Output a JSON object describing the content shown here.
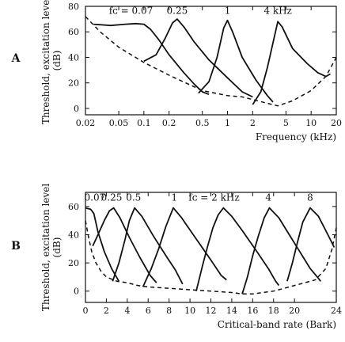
{
  "chart_data": [
    {
      "type": "line",
      "panel_label": "A",
      "ylabel_line1": "Threshold, excitation level",
      "ylabel_line2": "(dB)",
      "xlabel": "Frequency (kHz)",
      "x_scale": "log",
      "xlim": [
        0.02,
        20
      ],
      "ylim": [
        -5,
        80
      ],
      "x_ticks": [
        {
          "value": 0.02,
          "label": "0.02"
        },
        {
          "value": 0.05,
          "label": "0.05"
        },
        {
          "value": 0.1,
          "label": "0.1"
        },
        {
          "value": 0.2,
          "label": "0.2"
        },
        {
          "value": 0.5,
          "label": "0.5"
        },
        {
          "value": 1,
          "label": "1"
        },
        {
          "value": 2,
          "label": "2"
        },
        {
          "value": 5,
          "label": "5"
        },
        {
          "value": 10,
          "label": "10"
        },
        {
          "value": 20,
          "label": "20"
        }
      ],
      "y_ticks": [
        {
          "value": 0,
          "label": "0"
        },
        {
          "value": 20,
          "label": "20"
        },
        {
          "value": 40,
          "label": "40"
        },
        {
          "value": 60,
          "label": "60"
        },
        {
          "value": 80,
          "label": "80"
        }
      ],
      "annotations": [
        {
          "text": "fᴄ = 0.07",
          "x": 0.07,
          "y": 74
        },
        {
          "text": "0.25",
          "x": 0.25,
          "y": 74
        },
        {
          "text": "1",
          "x": 1,
          "y": 74
        },
        {
          "text": "4 kHz",
          "x": 4,
          "y": 74
        }
      ],
      "series": [
        {
          "style": "solid",
          "points": [
            [
              0.025,
              66
            ],
            [
              0.04,
              65
            ],
            [
              0.06,
              66
            ],
            [
              0.08,
              66.5
            ],
            [
              0.1,
              66
            ],
            [
              0.12,
              62
            ],
            [
              0.15,
              54
            ],
            [
              0.2,
              42
            ],
            [
              0.3,
              28
            ],
            [
              0.4,
              19
            ],
            [
              0.5,
              13
            ],
            [
              0.6,
              11
            ]
          ]
        },
        {
          "style": "solid",
          "points": [
            [
              0.1,
              37
            ],
            [
              0.14,
              42
            ],
            [
              0.18,
              55
            ],
            [
              0.22,
              67
            ],
            [
              0.25,
              70
            ],
            [
              0.3,
              64
            ],
            [
              0.4,
              52
            ],
            [
              0.6,
              38
            ],
            [
              1,
              24
            ],
            [
              1.5,
              13
            ],
            [
              2,
              9
            ]
          ]
        },
        {
          "style": "solid",
          "points": [
            [
              0.45,
              12
            ],
            [
              0.6,
              21
            ],
            [
              0.75,
              40
            ],
            [
              0.9,
              63
            ],
            [
              1,
              69
            ],
            [
              1.15,
              60
            ],
            [
              1.5,
              40
            ],
            [
              2.2,
              22
            ],
            [
              3,
              10
            ],
            [
              3.5,
              5
            ]
          ]
        },
        {
          "style": "solid",
          "points": [
            [
              2,
              3
            ],
            [
              2.5,
              13
            ],
            [
              3,
              32
            ],
            [
              3.6,
              55
            ],
            [
              4,
              68
            ],
            [
              4.5,
              64
            ],
            [
              6,
              47
            ],
            [
              9,
              35
            ],
            [
              12,
              28
            ],
            [
              15,
              25
            ],
            [
              17,
              27
            ]
          ]
        },
        {
          "style": "dashed",
          "points": [
            [
              0.02,
              72
            ],
            [
              0.03,
              60
            ],
            [
              0.05,
              48
            ],
            [
              0.1,
              36
            ],
            [
              0.2,
              26
            ],
            [
              0.5,
              14
            ],
            [
              1,
              10
            ],
            [
              1.5,
              9
            ],
            [
              2,
              7
            ],
            [
              3,
              4
            ],
            [
              4,
              2
            ],
            [
              6,
              6
            ],
            [
              10,
              14
            ],
            [
              15,
              25
            ],
            [
              20,
              40
            ]
          ]
        }
      ]
    },
    {
      "type": "line",
      "panel_label": "B",
      "ylabel_line1": "Threshold, excitation level",
      "ylabel_line2": "(dB)",
      "xlabel": "Critical-band rate (Bark)",
      "x_scale": "linear",
      "xlim": [
        0,
        24
      ],
      "ylim": [
        -8,
        70
      ],
      "x_ticks": [
        {
          "value": 0,
          "label": "0"
        },
        {
          "value": 2,
          "label": "2"
        },
        {
          "value": 4,
          "label": "4"
        },
        {
          "value": 6,
          "label": "6"
        },
        {
          "value": 8,
          "label": "8"
        },
        {
          "value": 10,
          "label": "10"
        },
        {
          "value": 12,
          "label": "12"
        },
        {
          "value": 14,
          "label": "14"
        },
        {
          "value": 16,
          "label": "16"
        },
        {
          "value": 18,
          "label": "18"
        },
        {
          "value": 20,
          "label": "20"
        },
        {
          "value": 24,
          "label": "24"
        }
      ],
      "y_ticks": [
        {
          "value": 0,
          "label": "0"
        },
        {
          "value": 20,
          "label": "20"
        },
        {
          "value": 40,
          "label": "40"
        },
        {
          "value": 60,
          "label": "60"
        }
      ],
      "annotations": [
        {
          "text": "0.07",
          "x": 0.9,
          "y": 64
        },
        {
          "text": "0.25",
          "x": 2.5,
          "y": 64
        },
        {
          "text": "0.5",
          "x": 4.6,
          "y": 64
        },
        {
          "text": "1",
          "x": 8.5,
          "y": 64
        },
        {
          "text": "fᴄ = 2 kHz",
          "x": 12.3,
          "y": 64
        },
        {
          "text": "4",
          "x": 17.5,
          "y": 64
        },
        {
          "text": "8",
          "x": 21.5,
          "y": 64
        }
      ],
      "series": [
        {
          "style": "solid",
          "points": [
            [
              0,
              59
            ],
            [
              0.5,
              58
            ],
            [
              0.8,
              55
            ],
            [
              1.2,
              42
            ],
            [
              1.8,
              28
            ],
            [
              2.5,
              16
            ],
            [
              3.2,
              7
            ]
          ]
        },
        {
          "style": "solid",
          "points": [
            [
              0.7,
              32
            ],
            [
              1.2,
              40
            ],
            [
              1.8,
              50
            ],
            [
              2.3,
              57
            ],
            [
              2.7,
              59
            ],
            [
              3.3,
              52
            ],
            [
              4.2,
              38
            ],
            [
              5.2,
              24
            ],
            [
              6.2,
              11
            ],
            [
              6.8,
              6
            ]
          ]
        },
        {
          "style": "solid",
          "points": [
            [
              2.6,
              7
            ],
            [
              3.2,
              20
            ],
            [
              3.8,
              37
            ],
            [
              4.2,
              50
            ],
            [
              4.7,
              59
            ],
            [
              5.4,
              53
            ],
            [
              6.5,
              39
            ],
            [
              7.8,
              24
            ],
            [
              8.6,
              15
            ],
            [
              9.3,
              5
            ]
          ]
        },
        {
          "style": "solid",
          "points": [
            [
              5.5,
              3
            ],
            [
              6.3,
              16
            ],
            [
              7,
              30
            ],
            [
              7.7,
              46
            ],
            [
              8.4,
              59
            ],
            [
              9.2,
              52
            ],
            [
              10.5,
              38
            ],
            [
              12,
              22
            ],
            [
              13,
              11
            ],
            [
              13.5,
              8
            ]
          ]
        },
        {
          "style": "solid",
          "points": [
            [
              10.6,
              0
            ],
            [
              11.2,
              18
            ],
            [
              11.7,
              32
            ],
            [
              12.2,
              45
            ],
            [
              12.7,
              54
            ],
            [
              13.2,
              59
            ],
            [
              14,
              53
            ],
            [
              15,
              43
            ],
            [
              16.5,
              27
            ],
            [
              17.5,
              16
            ],
            [
              18.2,
              7
            ],
            [
              18.5,
              4
            ]
          ]
        },
        {
          "style": "solid",
          "points": [
            [
              15,
              -2
            ],
            [
              15.5,
              10
            ],
            [
              16,
              25
            ],
            [
              16.5,
              38
            ],
            [
              17.1,
              52
            ],
            [
              17.6,
              59
            ],
            [
              18.5,
              52
            ],
            [
              19.5,
              40
            ],
            [
              20.5,
              28
            ],
            [
              21.5,
              16
            ],
            [
              22.3,
              9
            ],
            [
              22.5,
              7
            ]
          ]
        },
        {
          "style": "solid",
          "points": [
            [
              19.3,
              7
            ],
            [
              19.8,
              20
            ],
            [
              20.3,
              35
            ],
            [
              20.8,
              49
            ],
            [
              21.5,
              59
            ],
            [
              22.3,
              53
            ],
            [
              23.2,
              40
            ],
            [
              23.8,
              31
            ]
          ]
        },
        {
          "style": "dashed",
          "points": [
            [
              0,
              50
            ],
            [
              0.3,
              38
            ],
            [
              0.6,
              28
            ],
            [
              1,
              20
            ],
            [
              1.5,
              14
            ],
            [
              2,
              10
            ],
            [
              3,
              7
            ],
            [
              4,
              6
            ],
            [
              5,
              4
            ],
            [
              6,
              3
            ],
            [
              8,
              2
            ],
            [
              10,
              1
            ],
            [
              12,
              0
            ],
            [
              14,
              -1
            ],
            [
              15,
              -2
            ],
            [
              16,
              -2
            ],
            [
              17,
              -1
            ],
            [
              18,
              0
            ],
            [
              19,
              2
            ],
            [
              20,
              4
            ],
            [
              21,
              6
            ],
            [
              22,
              8
            ],
            [
              23,
              16
            ],
            [
              23.6,
              30
            ],
            [
              24,
              45
            ]
          ]
        }
      ]
    }
  ]
}
